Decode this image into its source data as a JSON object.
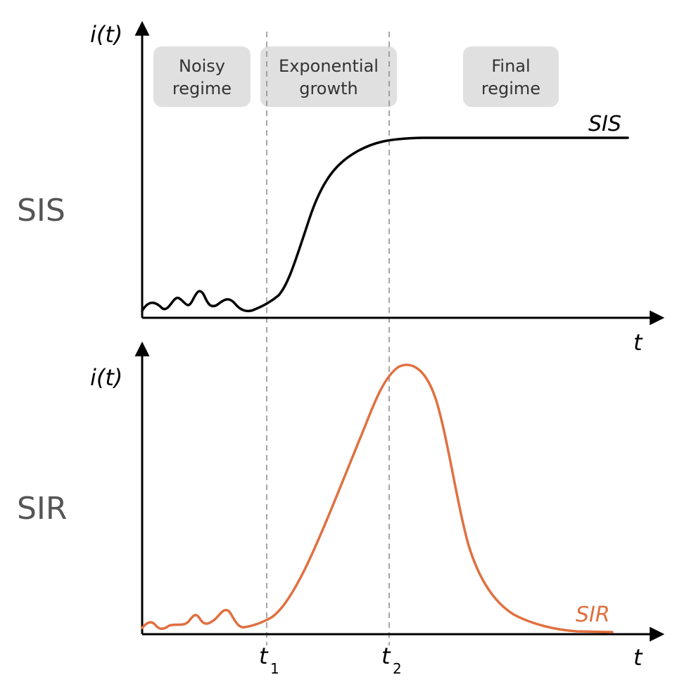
{
  "panels": {
    "top": {
      "row_label": "SIS",
      "y_axis_label": "i(t)",
      "x_axis_label": "t",
      "curve_label": "SIS"
    },
    "bottom": {
      "row_label": "SIR",
      "y_axis_label": "i(t)",
      "x_axis_label": "t",
      "curve_label": "SIR"
    }
  },
  "regimes": [
    {
      "line1": "Noisy",
      "line2": "regime"
    },
    {
      "line1": "Exponential",
      "line2": "growth"
    },
    {
      "line1": "Final",
      "line2": "regime"
    }
  ],
  "time_markers": [
    {
      "base": "t",
      "sub": "1"
    },
    {
      "base": "t",
      "sub": "2"
    }
  ],
  "colors": {
    "sis_curve": "#000000",
    "sir_curve": "#e07040",
    "regime_box": "#e0e0e0",
    "dashed_line": "#888888",
    "row_label": "#555555"
  }
}
